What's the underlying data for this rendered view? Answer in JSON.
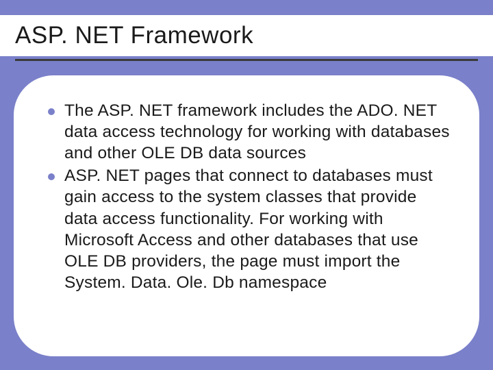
{
  "slide": {
    "title": "ASP. NET Framework",
    "title_fontsize": 35,
    "title_color": "#1a1a1a",
    "title_bg": "#ffffff",
    "underline_color": "#3a3a3a",
    "background_color": "#7a80c9",
    "content_box": {
      "bg": "#ffffff",
      "border_radius": 58
    },
    "bullets": [
      "The ASP. NET framework includes the ADO. NET data access technology for working with databases and other OLE DB data sources",
      "ASP. NET pages that connect to databases must gain access to the system classes that provide data access functionality. For working with Microsoft Access and other databases that use OLE DB providers, the page must import the System. Data. Ole. Db namespace"
    ],
    "bullet_color": "#7a80c9",
    "body_fontsize": 24.5,
    "body_color": "#1a1a1a"
  }
}
